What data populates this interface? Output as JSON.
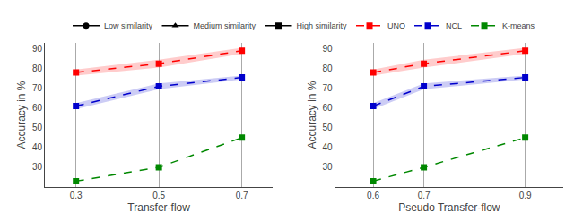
{
  "chart_data": [
    {
      "type": "line",
      "xlabel": "Transfer-flow",
      "ylabel": "Accuracy in %",
      "x": [
        0.3,
        0.5,
        0.7
      ],
      "xlim": [
        0.225,
        0.775
      ],
      "xticks": [
        0.3,
        0.5,
        0.7
      ],
      "ylim": [
        20,
        93
      ],
      "yticks": [
        30,
        40,
        50,
        60,
        70,
        80,
        90
      ],
      "grid": "x",
      "series": [
        {
          "name": "Low similarity",
          "color": "#000000",
          "marker": "circle",
          "line_style": "solid",
          "values": [
            null,
            null,
            null
          ]
        },
        {
          "name": "Medium similarity",
          "color": "#000000",
          "marker": "triangle-up",
          "line_style": "solid",
          "values": [
            null,
            null,
            null
          ]
        },
        {
          "name": "High similarity",
          "color": "#000000",
          "marker": "square",
          "line_style": "solid",
          "values": [
            null,
            null,
            null
          ]
        },
        {
          "name": "UNO",
          "color": "#ff0000",
          "marker": "square",
          "line_style": "dashed",
          "values": [
            78.0,
            82.5,
            89.0
          ],
          "lo": [
            76.5,
            80.5,
            87.5
          ],
          "hi": [
            79.5,
            84.5,
            90.5
          ]
        },
        {
          "name": "NCL",
          "color": "#0000cc",
          "marker": "square",
          "line_style": "dashed",
          "values": [
            61.0,
            71.0,
            75.5
          ],
          "lo": [
            59.5,
            69.5,
            74.5
          ],
          "hi": [
            62.5,
            72.5,
            76.5
          ]
        },
        {
          "name": "K-means",
          "color": "#008800",
          "marker": "square",
          "line_style": "dashed",
          "values": [
            23.0,
            30.0,
            45.0
          ]
        }
      ]
    },
    {
      "type": "line",
      "xlabel": "Pseudo Transfer-flow",
      "ylabel": "Accuracy in %",
      "x": [
        0.6,
        0.7,
        0.9
      ],
      "xlim": [
        0.525,
        0.975
      ],
      "xticks": [
        0.6,
        0.7,
        0.9
      ],
      "ylim": [
        20,
        93
      ],
      "yticks": [
        30,
        40,
        50,
        60,
        70,
        80,
        90
      ],
      "grid": "x",
      "series": [
        {
          "name": "UNO",
          "color": "#ff0000",
          "marker": "square",
          "line_style": "dashed",
          "values": [
            78.0,
            82.5,
            89.0
          ],
          "lo": [
            76.5,
            80.5,
            87.5
          ],
          "hi": [
            79.5,
            84.5,
            90.5
          ]
        },
        {
          "name": "NCL",
          "color": "#0000cc",
          "marker": "square",
          "line_style": "dashed",
          "values": [
            61.0,
            71.0,
            75.5
          ],
          "lo": [
            59.5,
            69.5,
            74.5
          ],
          "hi": [
            62.5,
            72.5,
            76.5
          ]
        },
        {
          "name": "K-means",
          "color": "#008800",
          "marker": "square",
          "line_style": "dashed",
          "values": [
            23.0,
            30.0,
            45.0
          ]
        }
      ]
    }
  ]
}
